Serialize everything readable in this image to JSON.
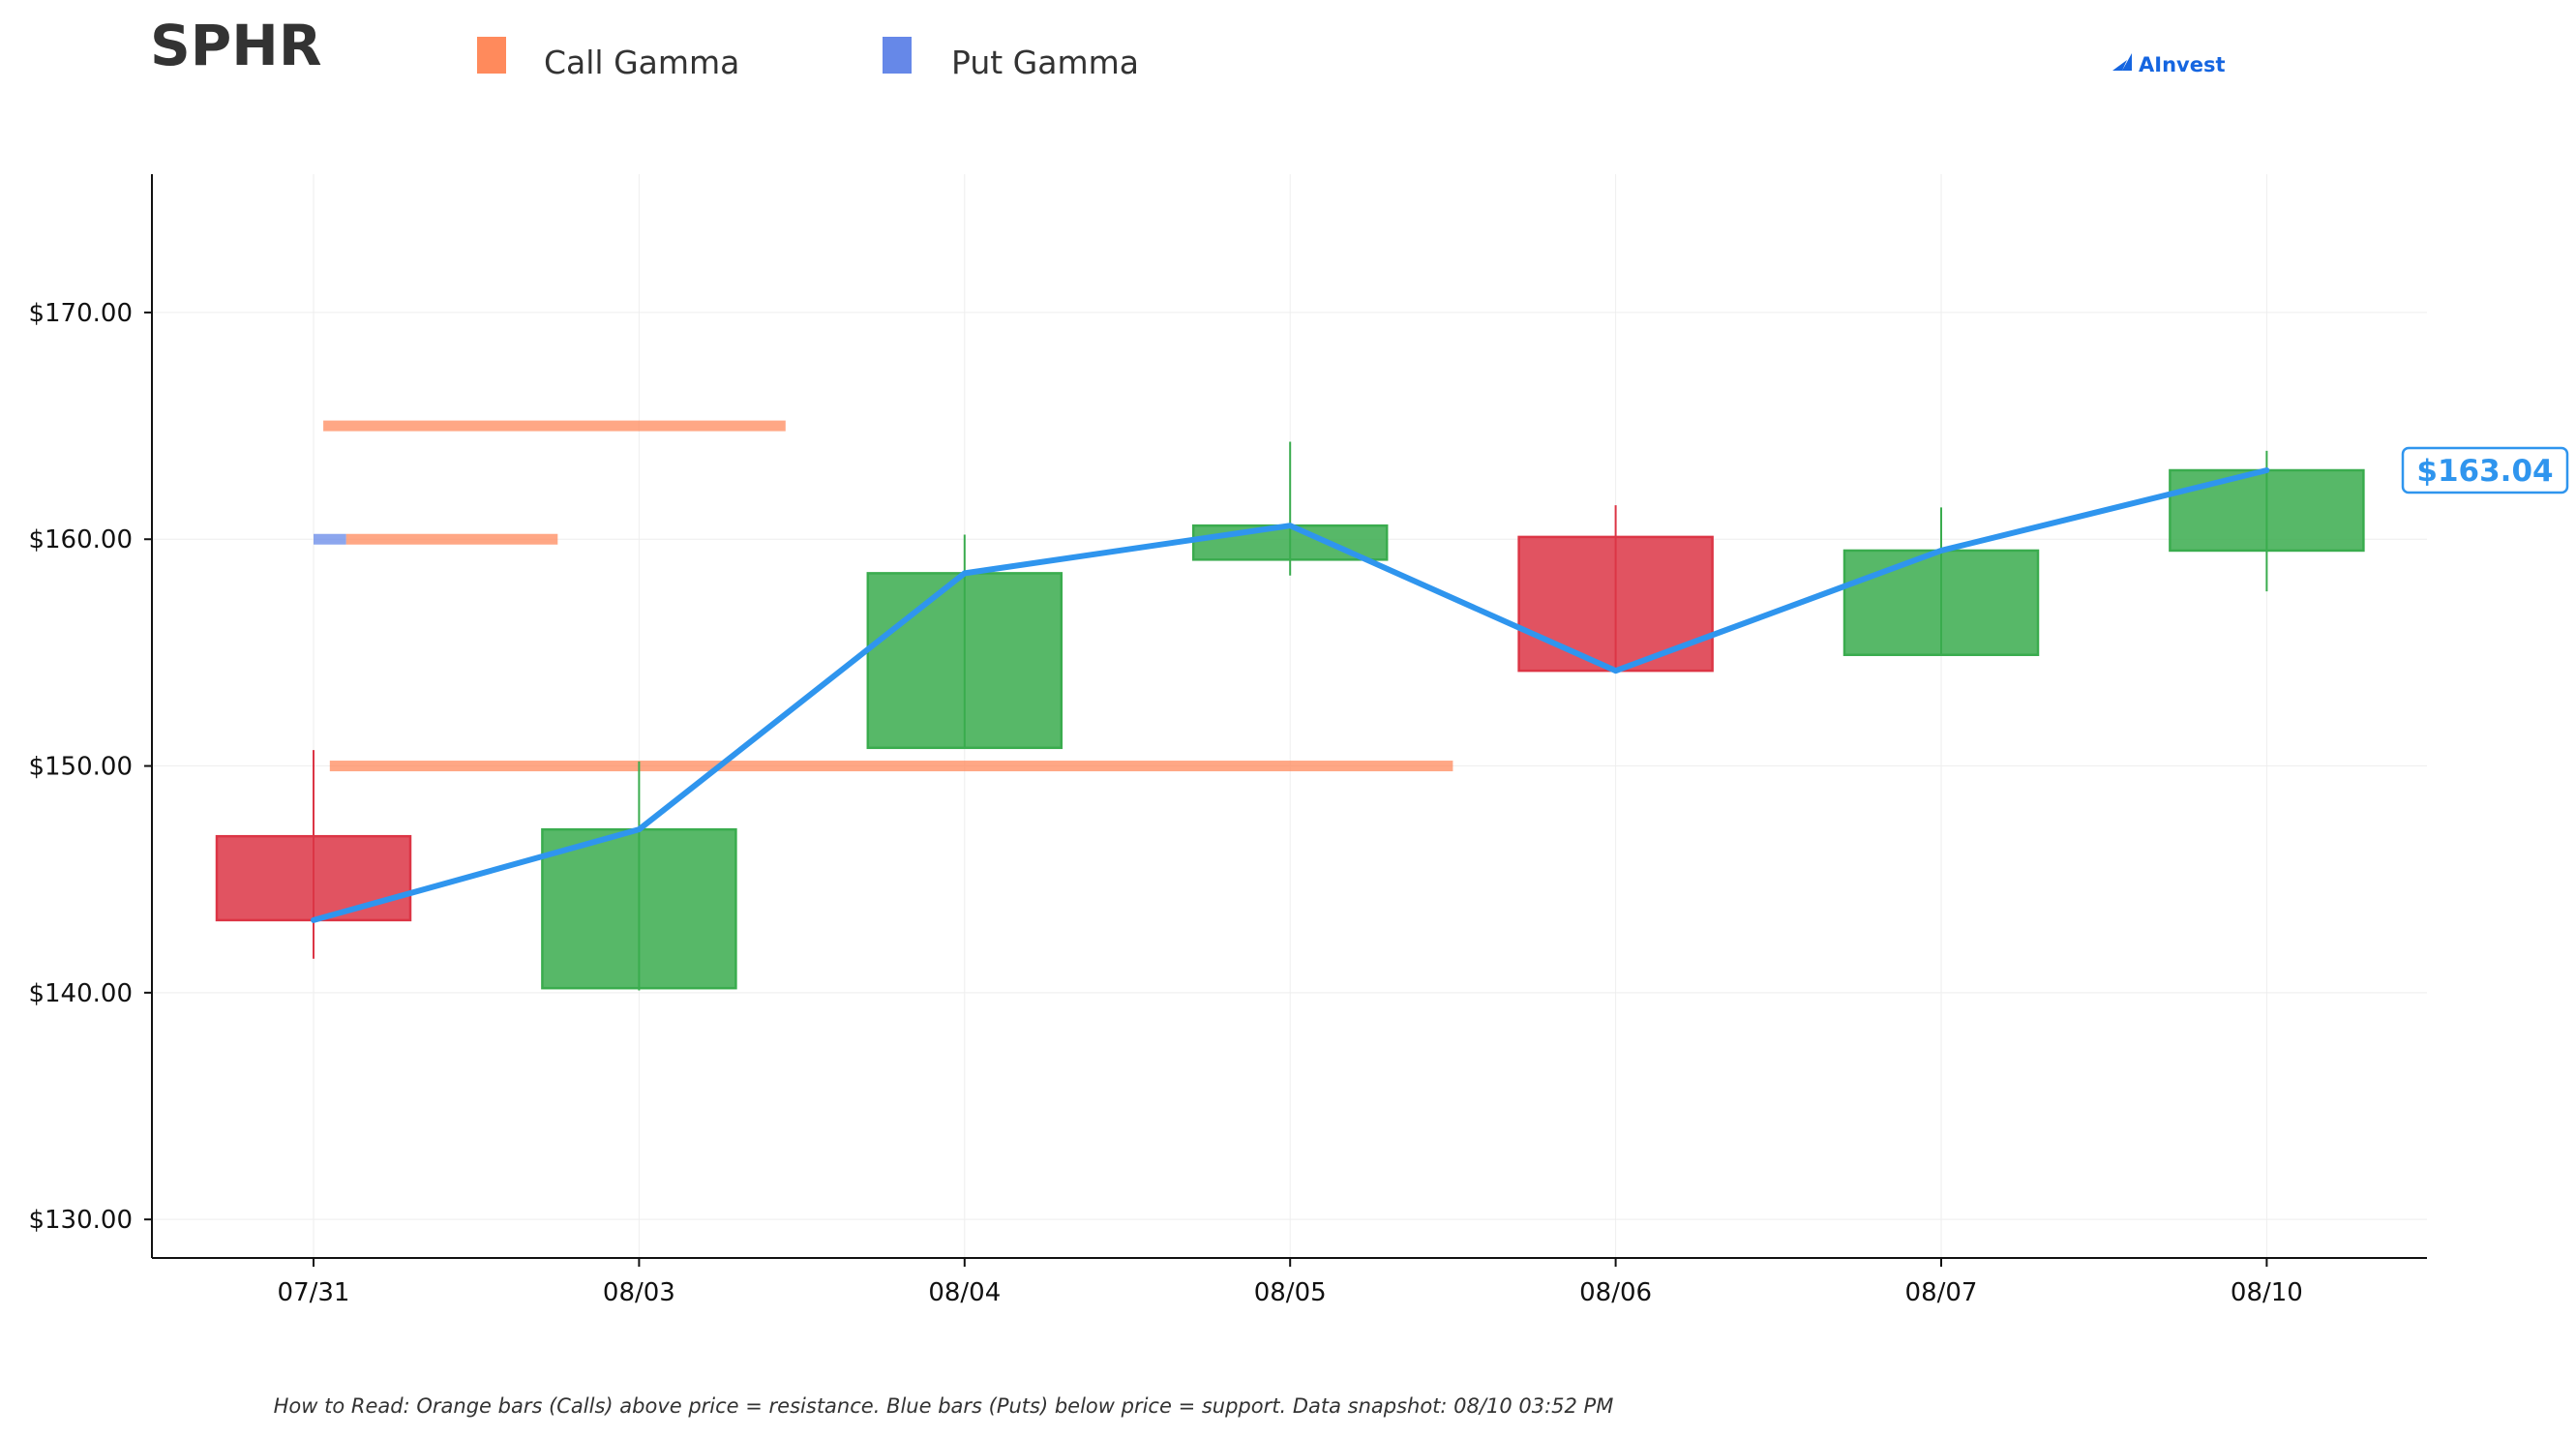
{
  "chart_data": {
    "type": "candlestick",
    "title": "SPHR",
    "categories": [
      "07/31",
      "08/03",
      "08/04",
      "08/05",
      "08/06",
      "08/07",
      "08/10"
    ],
    "candles": [
      {
        "date": "07/31",
        "open": 146.9,
        "high": 150.7,
        "low": 141.5,
        "close": 143.2
      },
      {
        "date": "08/03",
        "open": 140.2,
        "high": 150.2,
        "low": 140.1,
        "close": 147.2
      },
      {
        "date": "08/04",
        "open": 150.8,
        "high": 160.2,
        "low": 150.8,
        "close": 158.5
      },
      {
        "date": "08/05",
        "open": 159.1,
        "high": 164.3,
        "low": 158.4,
        "close": 160.6
      },
      {
        "date": "08/06",
        "open": 160.1,
        "high": 161.5,
        "low": 154.2,
        "close": 154.2
      },
      {
        "date": "08/07",
        "open": 154.9,
        "high": 161.4,
        "low": 154.9,
        "close": 159.5
      },
      {
        "date": "08/10",
        "open": 159.5,
        "high": 163.9,
        "low": 157.7,
        "close": 163.04
      }
    ],
    "price_line": [
      143.2,
      147.2,
      158.5,
      160.6,
      154.2,
      159.5,
      163.04
    ],
    "gamma_levels": [
      {
        "type": "call",
        "strike": 165,
        "x_start": 0.03,
        "x_end": 1.45
      },
      {
        "type": "call",
        "strike": 160,
        "x_start": 0.1,
        "x_end": 0.75
      },
      {
        "type": "put",
        "strike": 160,
        "x_start": 0.0,
        "x_end": 0.1
      },
      {
        "type": "call",
        "strike": 150,
        "x_start": 0.05,
        "x_end": 3.5
      }
    ],
    "ylim": [
      128.3,
      176.1
    ],
    "yticks": [
      130,
      140,
      150,
      160,
      170
    ],
    "ytick_labels": [
      "$130.00",
      "$140.00",
      "$150.00",
      "$160.00",
      "$170.00"
    ],
    "grid": true,
    "legend": {
      "placement": "top",
      "items": [
        {
          "label": "Call Gamma",
          "color": "#ff8a5c"
        },
        {
          "label": "Put Gamma",
          "color": "#6688e8"
        }
      ]
    },
    "last_price_label": "$163.04",
    "colors": {
      "up": "#3aac4e",
      "down": "#dc3545",
      "price_line": "#2f95ee",
      "call": "#ff8a5c",
      "put": "#6688e8"
    }
  },
  "logo": {
    "text": "AInvest"
  },
  "footnote": "How to Read: Orange bars (Calls) above price = resistance. Blue bars (Puts) below price = support. Data snapshot: 08/10 03:52 PM"
}
